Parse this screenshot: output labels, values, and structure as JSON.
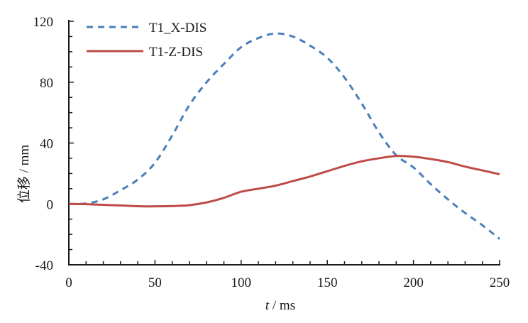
{
  "chart_data": {
    "type": "line",
    "title": "",
    "xlabel_italic": "t",
    "xlabel_unit": " / ms",
    "ylabel": "位移 / mm",
    "xlim": [
      0,
      250
    ],
    "ylim": [
      -40,
      120
    ],
    "x_ticks": [
      0,
      50,
      100,
      150,
      200,
      250
    ],
    "y_ticks": [
      -40,
      0,
      40,
      80,
      120
    ],
    "x_tick_labels": [
      "0",
      "50",
      "100",
      "150",
      "200",
      "250"
    ],
    "y_tick_labels": [
      "-40",
      "0",
      "40",
      "80",
      "120"
    ],
    "grid": false,
    "legend_placement": "top-left",
    "x": [
      0,
      10,
      20,
      30,
      40,
      50,
      60,
      70,
      80,
      90,
      100,
      110,
      120,
      130,
      140,
      150,
      160,
      170,
      180,
      190,
      200,
      210,
      220,
      230,
      240,
      250
    ],
    "series": [
      {
        "name": "T1_X-DIS",
        "color": "#4a7ebb",
        "style": "dashed",
        "values": [
          0,
          0.3,
          3,
          9,
          16,
          27,
          45,
          65,
          80,
          92,
          103,
          109,
          112,
          110,
          104,
          96,
          83,
          66,
          47,
          32,
          24,
          13,
          3,
          -6,
          -14,
          -23
        ]
      },
      {
        "name": "T1-Z-DIS",
        "color": "#be4b48",
        "style": "solid",
        "values": [
          0,
          -0.2,
          -0.6,
          -1,
          -1.5,
          -1.6,
          -1.4,
          -0.8,
          1,
          4,
          8,
          10,
          12,
          15,
          18,
          21.5,
          25,
          28,
          30,
          31.5,
          31,
          29.5,
          27.5,
          24.5,
          22,
          19.5
        ]
      }
    ]
  }
}
